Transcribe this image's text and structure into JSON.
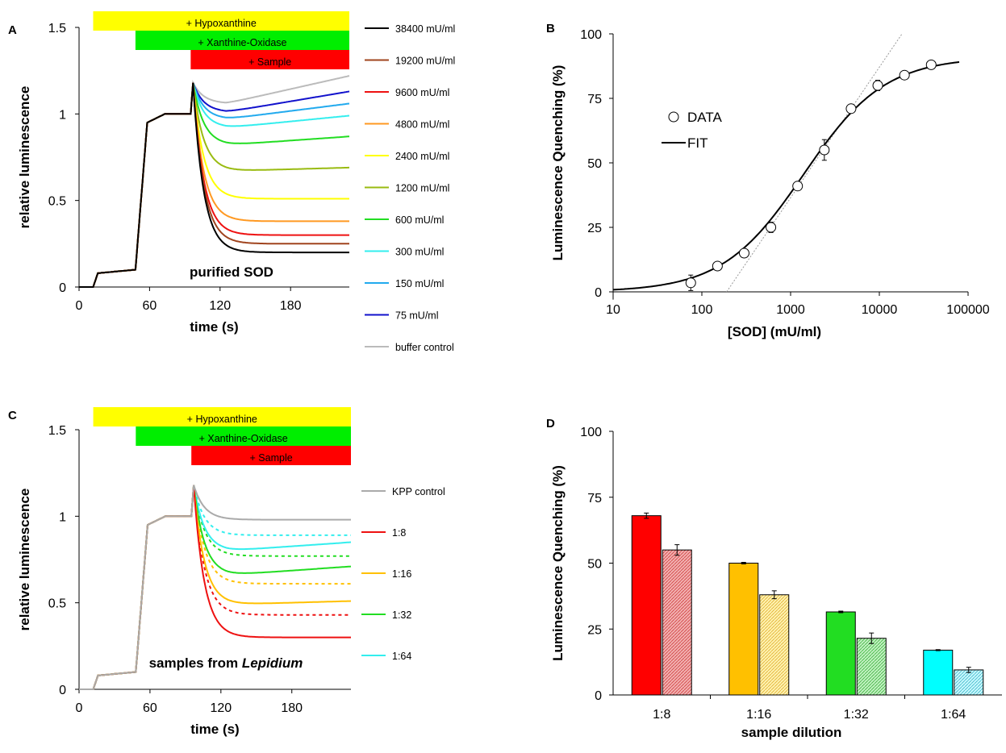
{
  "chart_data": [
    {
      "panel": "A",
      "type": "line",
      "xlabel": "time (s)",
      "ylabel": "relative luminescence",
      "xlim": [
        0,
        230
      ],
      "ylim": [
        0,
        1.5
      ],
      "xticks": [
        "0",
        "60",
        "120",
        "180"
      ],
      "yticks": [
        "0",
        "0.5",
        "1",
        "1.5"
      ],
      "annotation": "purified SOD",
      "event_bars": [
        {
          "label": "+ Hypoxanthine",
          "start": 12,
          "end": 230,
          "color": "#ffff00"
        },
        {
          "label": "+ Xanthine-Oxidase",
          "start": 48,
          "end": 230,
          "color": "#00ee00"
        },
        {
          "label": "+ Sample",
          "start": 95,
          "end": 230,
          "color": "#ff0000"
        }
      ],
      "legend_position": "right",
      "series": [
        {
          "name": "38400 mU/ml",
          "color": "#000000",
          "final": 0.2,
          "min": 0.2
        },
        {
          "name": "19200 mU/ml",
          "color": "#a0441e",
          "final": 0.25,
          "min": 0.25
        },
        {
          "name": "9600 mU/ml",
          "color": "#ee1111",
          "final": 0.3,
          "min": 0.3
        },
        {
          "name": "4800 mU/ml",
          "color": "#ff9922",
          "final": 0.38,
          "min": 0.38
        },
        {
          "name": "2400 mU/ml",
          "color": "#ffff00",
          "final": 0.51,
          "min": 0.51
        },
        {
          "name": "1200 mU/ml",
          "color": "#99bb11",
          "final": 0.69,
          "min": 0.67
        },
        {
          "name": "600 mU/ml",
          "color": "#22dd22",
          "final": 0.87,
          "min": 0.82
        },
        {
          "name": "300 mU/ml",
          "color": "#33eeee",
          "final": 0.99,
          "min": 0.92
        },
        {
          "name": "150 mU/ml",
          "color": "#22aaee",
          "final": 1.06,
          "min": 0.97
        },
        {
          "name": "75 mU/ml",
          "color": "#1111cc",
          "final": 1.13,
          "min": 1.01
        },
        {
          "name": "buffer control",
          "color": "#bbbbbb",
          "final": 1.22,
          "min": 1.06
        }
      ]
    },
    {
      "panel": "B",
      "type": "scatter",
      "xlabel": "[SOD] (mU/ml)",
      "ylabel": "Luminescence Quenching (%)",
      "xscale": "log",
      "xlim": [
        10,
        100000
      ],
      "ylim": [
        0,
        100
      ],
      "xticks": [
        "10",
        "100",
        "1000",
        "10000",
        "100000"
      ],
      "yticks": [
        "0",
        "25",
        "50",
        "75",
        "100"
      ],
      "legend": [
        "DATA",
        "FIT"
      ],
      "legend_position": "center-left",
      "data": {
        "x": [
          75,
          150,
          300,
          600,
          1200,
          2400,
          4800,
          9600,
          19200,
          38400
        ],
        "y": [
          3.5,
          10,
          15,
          25,
          41,
          55,
          71,
          80,
          84,
          88
        ],
        "err": [
          3,
          0.8,
          0.8,
          2,
          1,
          4,
          1,
          2,
          1,
          1
        ]
      },
      "fit": {
        "bottom": 0,
        "top": 91,
        "ec50": 1400,
        "hill": 0.95,
        "x_range": [
          10,
          80000
        ]
      }
    },
    {
      "panel": "C",
      "type": "line",
      "xlabel": "time (s)",
      "ylabel": "relative luminescence",
      "xlim": [
        0,
        230
      ],
      "ylim": [
        0,
        1.5
      ],
      "xticks": [
        "0",
        "60",
        "120",
        "180"
      ],
      "yticks": [
        "0",
        "0.5",
        "1",
        "1.5"
      ],
      "annotation_parts": [
        "samples from ",
        "Lepidium"
      ],
      "event_bars": [
        {
          "label": "+ Hypoxanthine",
          "start": 12,
          "end": 230,
          "color": "#ffff00"
        },
        {
          "label": "+ Xanthine-Oxidase",
          "start": 48,
          "end": 230,
          "color": "#00ee00"
        },
        {
          "label": "+ Sample",
          "start": 95,
          "end": 230,
          "color": "#ff0000"
        }
      ],
      "legend_position": "right",
      "series": [
        {
          "name": "KPP control",
          "color": "#aaaaaa",
          "style": "solid",
          "final": 0.98,
          "min": 0.98
        },
        {
          "name": "1:8",
          "color": "#ee1111",
          "style": "solid",
          "final": 0.3,
          "min": 0.3
        },
        {
          "name": "1:16",
          "color": "#ffc000",
          "style": "solid",
          "final": 0.51,
          "min": 0.49
        },
        {
          "name": "1:32",
          "color": "#22dd22",
          "style": "solid",
          "final": 0.71,
          "min": 0.66
        },
        {
          "name": "1:64",
          "color": "#33eeee",
          "style": "solid",
          "final": 0.85,
          "min": 0.8
        },
        {
          "name": "",
          "color": "#ee1111",
          "style": "dashed",
          "final": 0.43,
          "min": 0.43
        },
        {
          "name": "",
          "color": "#ffc000",
          "style": "dashed",
          "final": 0.61,
          "min": 0.61
        },
        {
          "name": "",
          "color": "#22dd22",
          "style": "dashed",
          "final": 0.77,
          "min": 0.77
        },
        {
          "name": "",
          "color": "#33eeee",
          "style": "dashed",
          "final": 0.89,
          "min": 0.89
        }
      ]
    },
    {
      "panel": "D",
      "type": "bar",
      "xlabel": "sample dilution",
      "ylabel": "Luminescence Quenching (%)",
      "ylim": [
        0,
        100
      ],
      "yticks": [
        "0",
        "25",
        "50",
        "75",
        "100"
      ],
      "categories": [
        "1:8",
        "1:16",
        "1:32",
        "1:64"
      ],
      "colors": [
        "#ff0000",
        "#ffc000",
        "#22dd22",
        "#00ffff"
      ],
      "series": [
        {
          "style": "solid",
          "values": [
            68,
            50,
            31.5,
            17
          ],
          "err": [
            1,
            0.3,
            0.3,
            0.2
          ]
        },
        {
          "style": "hatched",
          "values": [
            55,
            38,
            21.5,
            9.5
          ],
          "err": [
            2,
            1.5,
            2,
            1
          ]
        }
      ]
    }
  ]
}
